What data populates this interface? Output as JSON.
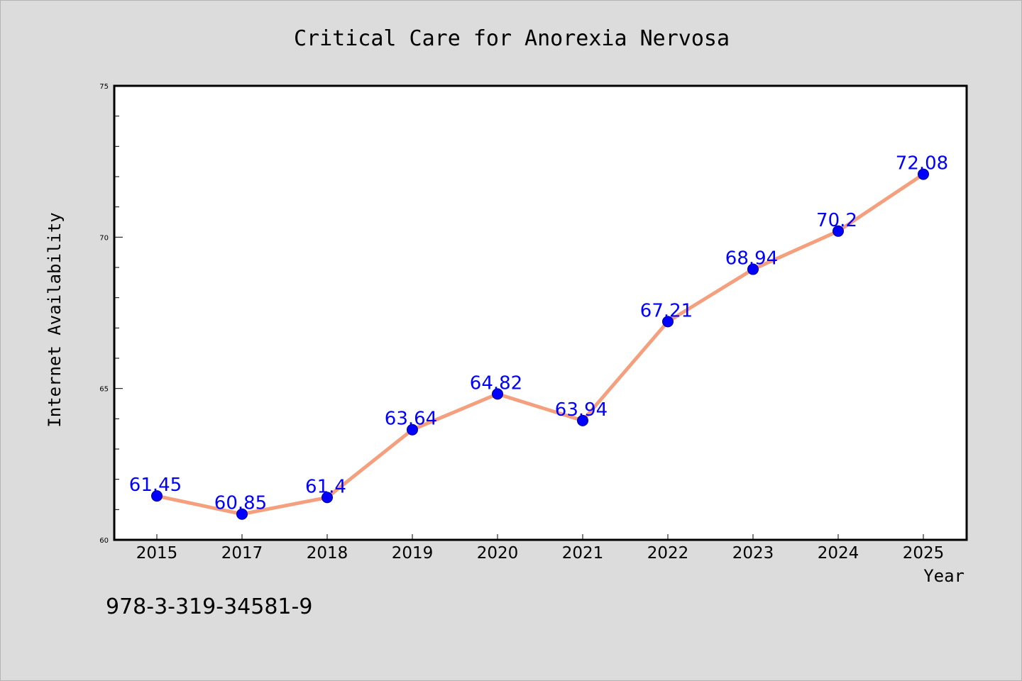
{
  "chart_data": {
    "type": "line",
    "title": "Critical Care for Anorexia Nervosa",
    "xlabel": "Year",
    "ylabel": "Internet Availability",
    "categories": [
      "2015",
      "2017",
      "2018",
      "2019",
      "2020",
      "2021",
      "2022",
      "2023",
      "2024",
      "2025"
    ],
    "series": [
      {
        "values": [
          61.45,
          60.85,
          61.4,
          63.64,
          64.82,
          63.94,
          67.21,
          68.94,
          70.2,
          72.08
        ],
        "data_labels": [
          "61.45",
          "60.85",
          "61.4",
          "63.64",
          "64.82",
          "63.94",
          "67.21",
          "68.94",
          "70.2",
          "72.08"
        ]
      }
    ],
    "ylim": [
      60,
      75
    ],
    "yticks": [
      "60",
      "65",
      "70",
      "75"
    ],
    "grid": false,
    "legend": "none",
    "colors": {
      "line": "#f4a07e",
      "marker": "#0000ff",
      "data_label": "#0000ff",
      "background": "#dcdcdc",
      "plot_background": "#ffffff"
    }
  },
  "footer": {
    "code": "978-3-319-34581-9"
  }
}
